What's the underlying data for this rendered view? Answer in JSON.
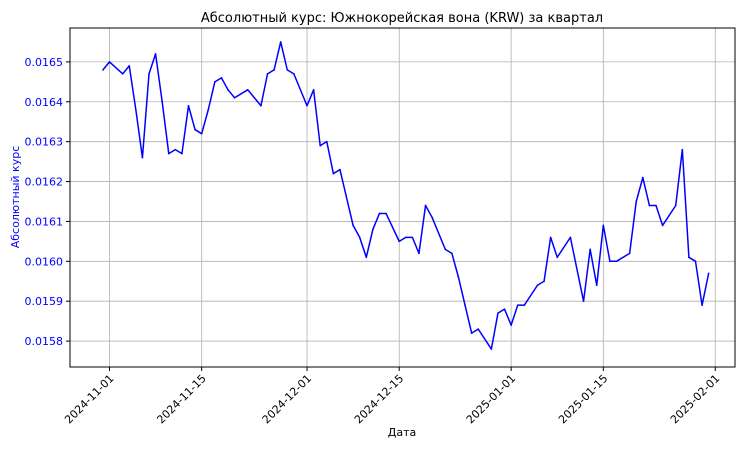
{
  "chart_data": {
    "type": "line",
    "title": "Абсолютный курс: Южнокорейская вона (KRW) за квартал",
    "xlabel": "Дата",
    "ylabel": "Абсолютный курс",
    "xlim": [
      "2024-10-26",
      "2025-02-04"
    ],
    "ylim": [
      0.015735,
      0.016585
    ],
    "x_ticks": [
      "2024-11-01",
      "2024-11-15",
      "2024-12-01",
      "2024-12-15",
      "2025-01-01",
      "2025-01-15",
      "2025-02-01"
    ],
    "y_ticks": [
      "0.0158",
      "0.0159",
      "0.0160",
      "0.0161",
      "0.0162",
      "0.0163",
      "0.0164",
      "0.0165"
    ],
    "grid": true,
    "colors": {
      "line": "#0000ff",
      "ylabel": "#0000ff",
      "yticks": "#0000ff",
      "grid": "#b0b0b0",
      "axes": "#000000"
    },
    "series": [
      {
        "name": "",
        "x": [
          "2024-10-31",
          "2024-11-01",
          "2024-11-03",
          "2024-11-04",
          "2024-11-05",
          "2024-11-06",
          "2024-11-07",
          "2024-11-08",
          "2024-11-09",
          "2024-11-10",
          "2024-11-11",
          "2024-11-12",
          "2024-11-13",
          "2024-11-14",
          "2024-11-15",
          "2024-11-16",
          "2024-11-17",
          "2024-11-18",
          "2024-11-19",
          "2024-11-20",
          "2024-11-22",
          "2024-11-24",
          "2024-11-25",
          "2024-11-26",
          "2024-11-27",
          "2024-11-28",
          "2024-11-29",
          "2024-12-01",
          "2024-12-02",
          "2024-12-03",
          "2024-12-04",
          "2024-12-05",
          "2024-12-06",
          "2024-12-08",
          "2024-12-09",
          "2024-12-10",
          "2024-12-11",
          "2024-12-12",
          "2024-12-13",
          "2024-12-15",
          "2024-12-16",
          "2024-12-17",
          "2024-12-18",
          "2024-12-19",
          "2024-12-20",
          "2024-12-22",
          "2024-12-23",
          "2024-12-24",
          "2024-12-25",
          "2024-12-26",
          "2024-12-27",
          "2024-12-29",
          "2024-12-30",
          "2024-12-31",
          "2025-01-01",
          "2025-01-02",
          "2025-01-03",
          "2025-01-05",
          "2025-01-06",
          "2025-01-07",
          "2025-01-08",
          "2025-01-10",
          "2025-01-12",
          "2025-01-13",
          "2025-01-14",
          "2025-01-15",
          "2025-01-16",
          "2025-01-17",
          "2025-01-19",
          "2025-01-20",
          "2025-01-21",
          "2025-01-22",
          "2025-01-23",
          "2025-01-24",
          "2025-01-26",
          "2025-01-27",
          "2025-01-28",
          "2025-01-29",
          "2025-01-30",
          "2025-01-31"
        ],
        "values": [
          0.01648,
          0.0165,
          0.01647,
          0.01649,
          0.01638,
          0.01626,
          0.01647,
          0.01652,
          0.0164,
          0.01627,
          0.01628,
          0.01627,
          0.01639,
          0.01633,
          0.01632,
          0.01638,
          0.01645,
          0.01646,
          0.01643,
          0.01641,
          0.01643,
          0.01639,
          0.01647,
          0.01648,
          0.01655,
          0.01648,
          0.01647,
          0.01639,
          0.01643,
          0.01629,
          0.0163,
          0.01622,
          0.01623,
          0.01609,
          0.01606,
          0.01601,
          0.01608,
          0.01612,
          0.01612,
          0.01605,
          0.01606,
          0.01606,
          0.01602,
          0.01614,
          0.01611,
          0.01603,
          0.01602,
          0.01596,
          0.01589,
          0.01582,
          0.01583,
          0.01578,
          0.01587,
          0.01588,
          0.01584,
          0.01589,
          0.01589,
          0.01594,
          0.01595,
          0.01606,
          0.01601,
          0.01606,
          0.0159,
          0.01603,
          0.01594,
          0.01609,
          0.016,
          0.016,
          0.01602,
          0.01615,
          0.01621,
          0.01614,
          0.01614,
          0.01609,
          0.01614,
          0.01628,
          0.01601,
          0.016,
          0.01589,
          0.01597
        ]
      }
    ]
  }
}
